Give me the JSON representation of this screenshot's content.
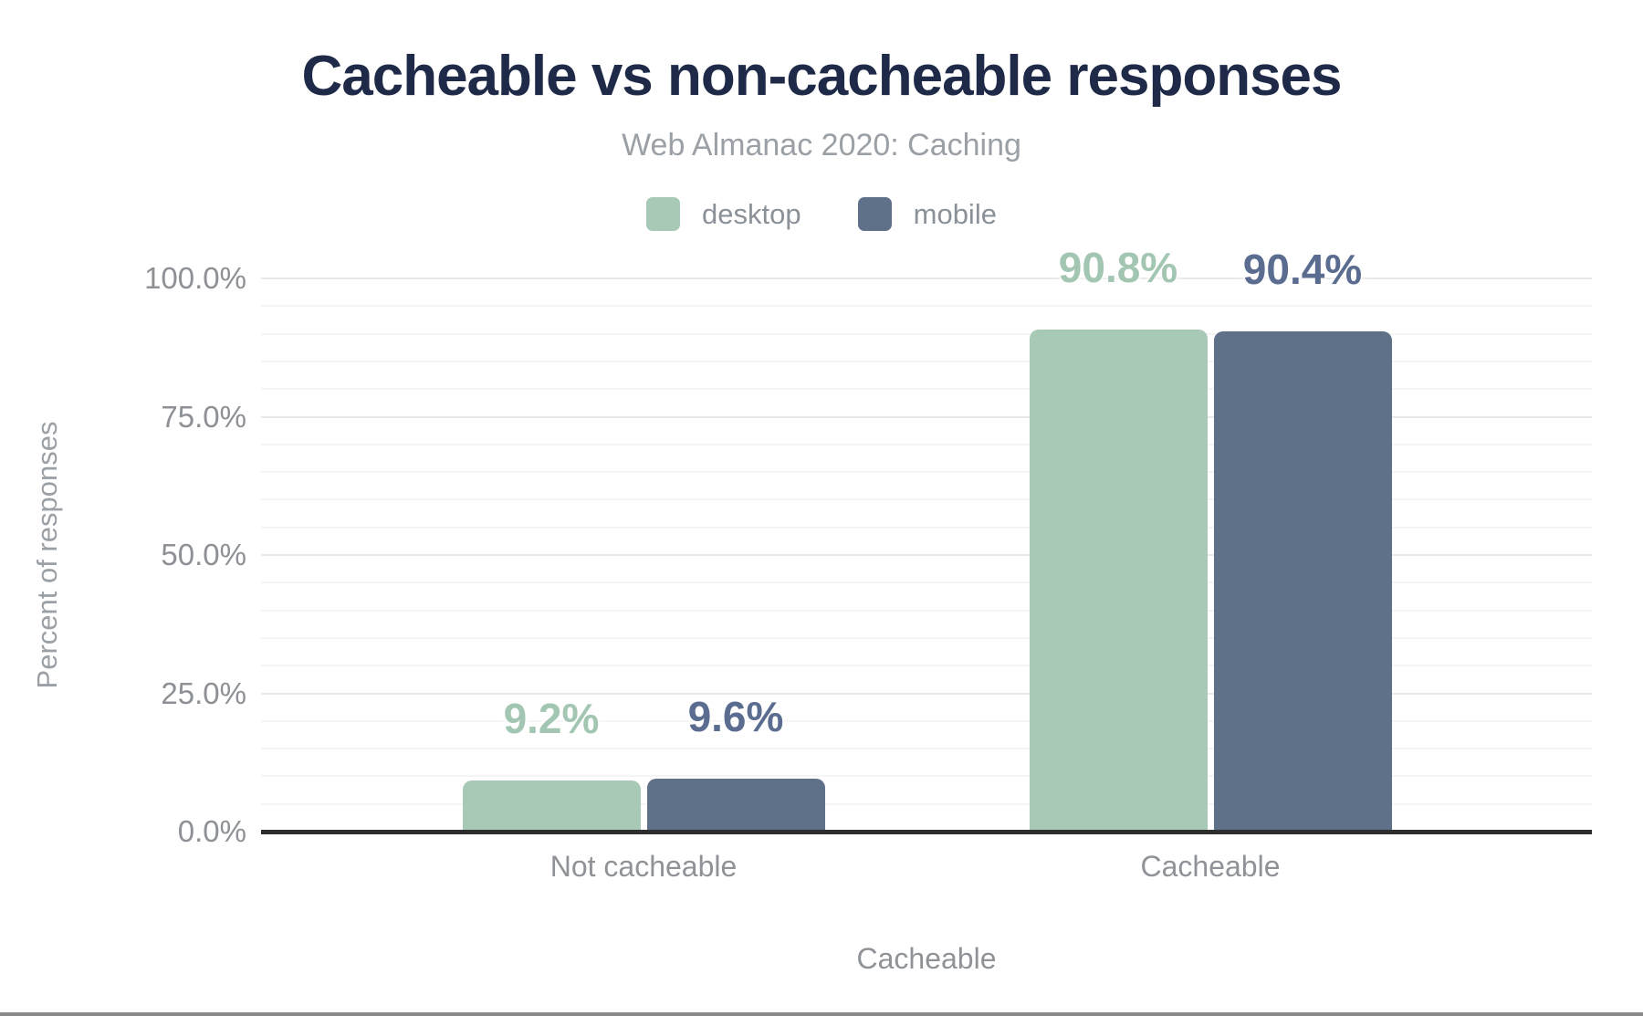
{
  "page": {
    "background": "#ffffff",
    "bottom_edge_color": "#8a8a8a"
  },
  "header": {
    "title": "Cacheable vs non-cacheable responses",
    "title_color": "#1e2a47",
    "subtitle": "Web Almanac 2020: Caching",
    "subtitle_color": "#9aa0a6"
  },
  "legend": {
    "position": "top",
    "items": [
      {
        "label": "desktop",
        "color": "#a7c9b6"
      },
      {
        "label": "mobile",
        "color": "#5f7089"
      }
    ]
  },
  "chart_data": {
    "type": "bar",
    "title": "Cacheable vs non-cacheable responses",
    "subtitle": "Web Almanac 2020: Caching",
    "categories": [
      "Not cacheable",
      "Cacheable"
    ],
    "series": [
      {
        "name": "desktop",
        "values": [
          9.2,
          90.8
        ],
        "value_labels": [
          "9.2%",
          "90.8%"
        ],
        "bar_color": "#a7c9b6",
        "label_color": "#a3c6b3"
      },
      {
        "name": "mobile",
        "values": [
          9.6,
          90.4
        ],
        "value_labels": [
          "9.6%",
          "90.4%"
        ],
        "bar_color": "#5f7089",
        "label_color": "#5a6c8f"
      }
    ],
    "xlabel": "Cacheable",
    "ylabel": "Percent of responses",
    "ylim": [
      0,
      100
    ],
    "yticks": [
      {
        "label": "0.0%",
        "value": 0
      },
      {
        "label": "25.0%",
        "value": 25
      },
      {
        "label": "50.0%",
        "value": 50
      },
      {
        "label": "75.0%",
        "value": 75
      },
      {
        "label": "100.0%",
        "value": 100
      }
    ],
    "grid": {
      "orientation": "horizontal",
      "minor_step": 5,
      "major_step": 25,
      "minor_color": "#f5f5f6",
      "major_color": "#e9e9ea"
    },
    "axis_line_color": "#2d2d2d",
    "legend_position": "top"
  }
}
